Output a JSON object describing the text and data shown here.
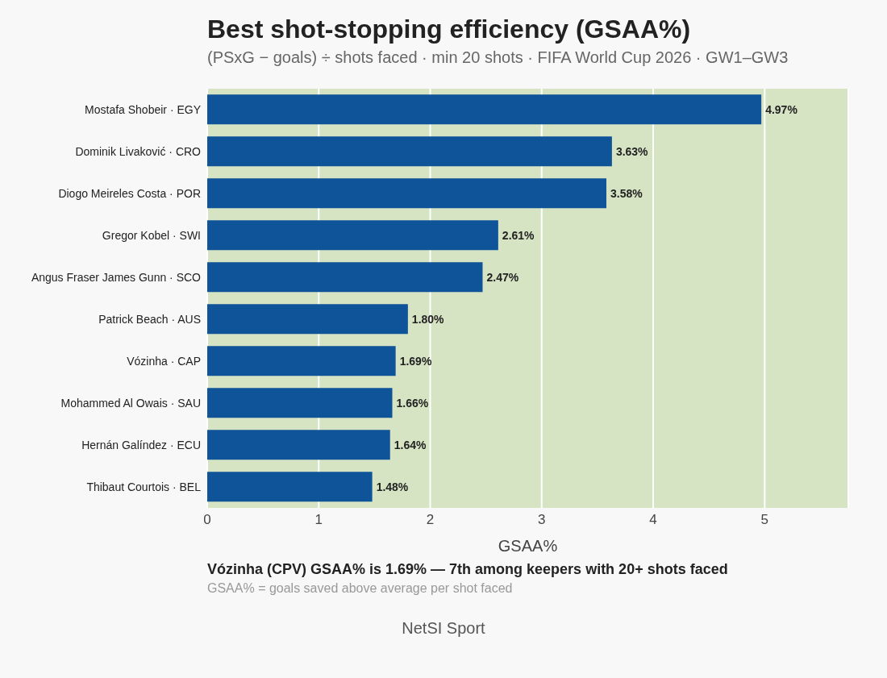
{
  "chart_data": {
    "type": "bar",
    "orientation": "horizontal",
    "title": "Best shot-stopping efficiency (GSAA%)",
    "subtitle": "(PSxG − goals) ÷ shots faced · min 20 shots · FIFA World Cup 2026 · GW1–GW3",
    "xlabel": "GSAA%",
    "categories": [
      "Mostafa Shobeir  ·  EGY",
      "Dominik Livaković  ·  CRO",
      "Diogo Meireles Costa  ·  POR",
      "Gregor Kobel  ·  SWI",
      "Angus Fraser James Gunn  ·  SCO",
      "Patrick Beach  ·  AUS",
      "Vózinha  ·  CAP",
      "Mohammed Al Owais  ·  SAU",
      "Hernán Galíndez  ·  ECU",
      "Thibaut Courtois  ·  BEL"
    ],
    "values": [
      4.97,
      3.63,
      3.58,
      2.61,
      2.47,
      1.8,
      1.69,
      1.66,
      1.64,
      1.48
    ],
    "value_labels": [
      "4.97%",
      "3.63%",
      "3.58%",
      "2.61%",
      "2.47%",
      "1.80%",
      "1.69%",
      "1.66%",
      "1.64%",
      "1.48%"
    ],
    "color": "#0f5499",
    "xlim": [
      0,
      5.75
    ],
    "xticks": [
      0,
      1,
      2,
      3,
      4,
      5
    ],
    "grid": "x",
    "legend": false,
    "annotations": [
      "Vózinha (CPV) GSAA% is 1.69% — 7th among keepers with 20+ shots faced",
      "GSAA% = goals saved above average per shot faced",
      "NetSI Sport"
    ]
  }
}
